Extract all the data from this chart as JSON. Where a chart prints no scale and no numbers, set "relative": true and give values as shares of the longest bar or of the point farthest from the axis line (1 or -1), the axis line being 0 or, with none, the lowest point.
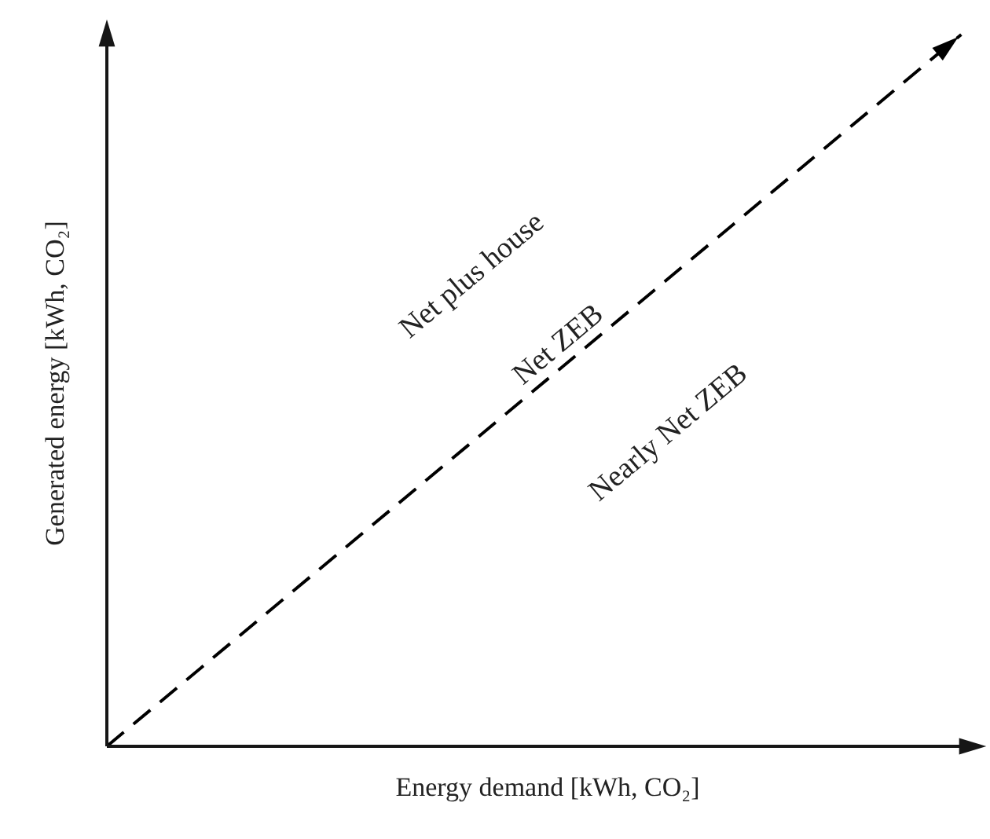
{
  "chart_data": {
    "type": "line",
    "relative": true,
    "categories": [
      null,
      null
    ],
    "xlabel": "Energy demand [kWh, CO₂]",
    "ylabel": "Generated energy [kWh, CO₂]",
    "series": [
      {
        "color": "#000000",
        "values": [
          0,
          1
        ]
      }
    ],
    "line_style": "dashed",
    "marker": "none",
    "grid": false,
    "annotations": [
      "Net plus house",
      "Net ZEB",
      "Nearly Net ZEB"
    ]
  }
}
